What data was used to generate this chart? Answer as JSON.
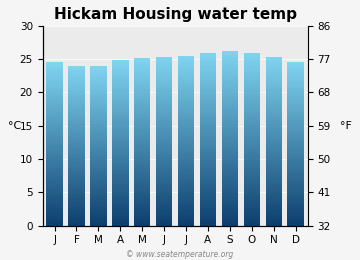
{
  "title": "Hickam Housing water temp",
  "months": [
    "J",
    "F",
    "M",
    "A",
    "M",
    "J",
    "J",
    "A",
    "S",
    "O",
    "N",
    "D"
  ],
  "values_c": [
    24.5,
    24.0,
    23.9,
    24.8,
    25.1,
    25.4,
    25.5,
    26.0,
    26.3,
    26.0,
    25.4,
    24.6
  ],
  "ylim_c": [
    0,
    30
  ],
  "yticks_c": [
    0,
    5,
    10,
    15,
    20,
    25,
    30
  ],
  "yticks_f": [
    32,
    41,
    50,
    59,
    68,
    77,
    86
  ],
  "ylabel_left": "°C",
  "ylabel_right": "°F",
  "bar_color_bottom": "#0d3f6e",
  "bar_color_top": "#7fd4f0",
  "figure_bg": "#f5f5f5",
  "plot_bg": "#ebebeb",
  "watermark": "© www.seatemperature.org",
  "title_fontsize": 11,
  "tick_fontsize": 7.5,
  "label_fontsize": 8,
  "bar_width": 0.75
}
